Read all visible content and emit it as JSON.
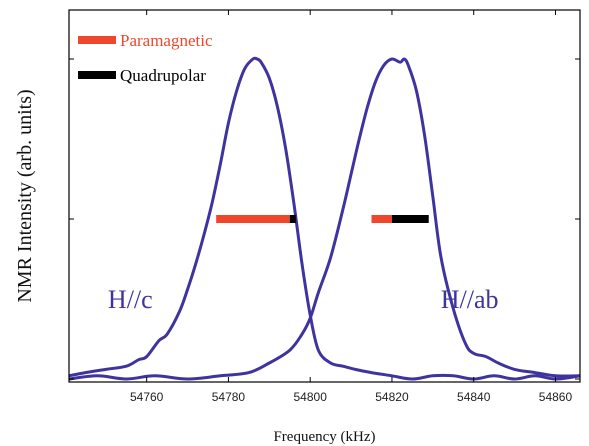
{
  "chart_data": {
    "type": "line",
    "title": "",
    "xlabel": "Frequency (kHz)",
    "ylabel": "NMR Intensity (arb. units)",
    "xlim": [
      54741,
      54866
    ],
    "ylim": [
      0,
      1.0
    ],
    "xticks": [
      54760,
      54780,
      54800,
      54820,
      54840,
      54860
    ],
    "grid": false,
    "line_color": "#3f33a0",
    "series": [
      {
        "name": "H//c",
        "x": [
          54741,
          54745,
          54750,
          54755,
          54758,
          54760,
          54763,
          54765,
          54768,
          54770,
          54772,
          54774,
          54776,
          54778,
          54780,
          54782,
          54784,
          54786,
          54787,
          54788,
          54790,
          54792,
          54794,
          54796,
          54798,
          54800,
          54802,
          54805,
          54808,
          54811,
          54815,
          54820,
          54825,
          54830,
          54835,
          54840,
          54845,
          54850,
          54855,
          54860,
          54866
        ],
        "y": [
          0.01,
          0.02,
          0.03,
          0.04,
          0.06,
          0.07,
          0.12,
          0.14,
          0.21,
          0.28,
          0.36,
          0.45,
          0.55,
          0.67,
          0.8,
          0.9,
          0.97,
          1.0,
          1.0,
          0.99,
          0.94,
          0.85,
          0.72,
          0.55,
          0.36,
          0.2,
          0.09,
          0.05,
          0.04,
          0.03,
          0.02,
          0.01,
          0.0,
          0.01,
          0.01,
          0.0,
          0.01,
          0.0,
          0.01,
          0.0,
          0.01
        ]
      },
      {
        "name": "H//ab",
        "x": [
          54741,
          54748,
          54755,
          54762,
          54770,
          54778,
          54785,
          54790,
          54795,
          54798,
          54800,
          54802,
          54805,
          54808,
          54810,
          54812,
          54814,
          54816,
          54818,
          54820,
          54822,
          54823,
          54824,
          54826,
          54828,
          54830,
          54832,
          54835,
          54838,
          54840,
          54843,
          54846,
          54850,
          54855,
          54860,
          54866
        ],
        "y": [
          0.0,
          0.01,
          0.0,
          0.01,
          0.0,
          0.01,
          0.02,
          0.05,
          0.09,
          0.14,
          0.19,
          0.27,
          0.38,
          0.53,
          0.64,
          0.75,
          0.85,
          0.93,
          0.98,
          1.0,
          0.99,
          1.0,
          0.98,
          0.9,
          0.76,
          0.57,
          0.38,
          0.22,
          0.11,
          0.08,
          0.07,
          0.05,
          0.03,
          0.02,
          0.01,
          0.01
        ]
      }
    ],
    "bars": [
      {
        "name": "Paramagnetic",
        "color": "#f0472c",
        "y": 0.5,
        "segments": [
          [
            54777,
            54795
          ],
          [
            54815,
            54820
          ]
        ]
      },
      {
        "name": "Quadrupolar",
        "color": "#000000",
        "y": 0.5,
        "segments": [
          [
            54795,
            54796.5
          ],
          [
            54820,
            54829
          ]
        ]
      }
    ],
    "legend": [
      {
        "label": "Paramagnetic",
        "color": "#f0472c"
      },
      {
        "label": "Quadrupolar",
        "color": "#000000"
      }
    ],
    "legend_position": "top-left",
    "annotations": [
      {
        "text": "H//c",
        "x": 54756,
        "y": 0.25
      },
      {
        "text": "H//ab",
        "x": 54839,
        "y": 0.25
      }
    ]
  }
}
